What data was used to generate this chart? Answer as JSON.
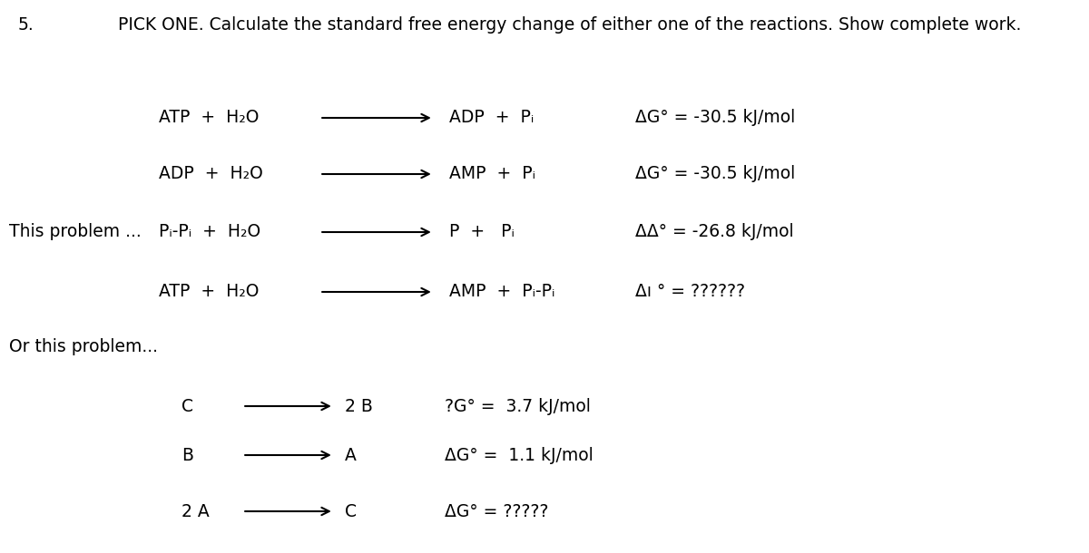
{
  "title_number": "5.",
  "title_text": "PICK ONE. Calculate the standard free energy change of either one of the reactions. Show complete work.",
  "this_problem_label": "This problem ...",
  "or_problem_label": "Or this problem...",
  "bg_color": "#ffffff",
  "text_color": "#000000",
  "font_size": 13.5,
  "font_size_title": 13.5,
  "p1_rows": [
    {
      "reactants": "ATP  +  H₂O",
      "products": "ADP  +  Pᵢ",
      "delta_g": "ΔG° = -30.5 kJ/mol",
      "label": ""
    },
    {
      "reactants": "ADP  +  H₂O",
      "products": "AMP  +  Pᵢ",
      "delta_g": "ΔG° = -30.5 kJ/mol",
      "label": ""
    },
    {
      "reactants": "Pᵢ-Pᵢ  +  H₂O",
      "products": "P  +   Pᵢ",
      "delta_g": "ΔΔ° = -26.8 kJ/mol",
      "label": "This problem ..."
    },
    {
      "reactants": "ATP  +  H₂O",
      "products": "AMP  +  Pᵢ-Pᵢ",
      "delta_g": "Δı ° = ??????",
      "label": ""
    }
  ],
  "p2_rows": [
    {
      "reactants": "C",
      "products": "2 B",
      "delta_g": "?G° =  3.7 kJ/mol"
    },
    {
      "reactants": "B",
      "products": "A",
      "delta_g": "ΔG° =  1.1 kJ/mol"
    },
    {
      "reactants": "2 A",
      "products": "C",
      "delta_g": "ΔG° = ?????"
    }
  ]
}
